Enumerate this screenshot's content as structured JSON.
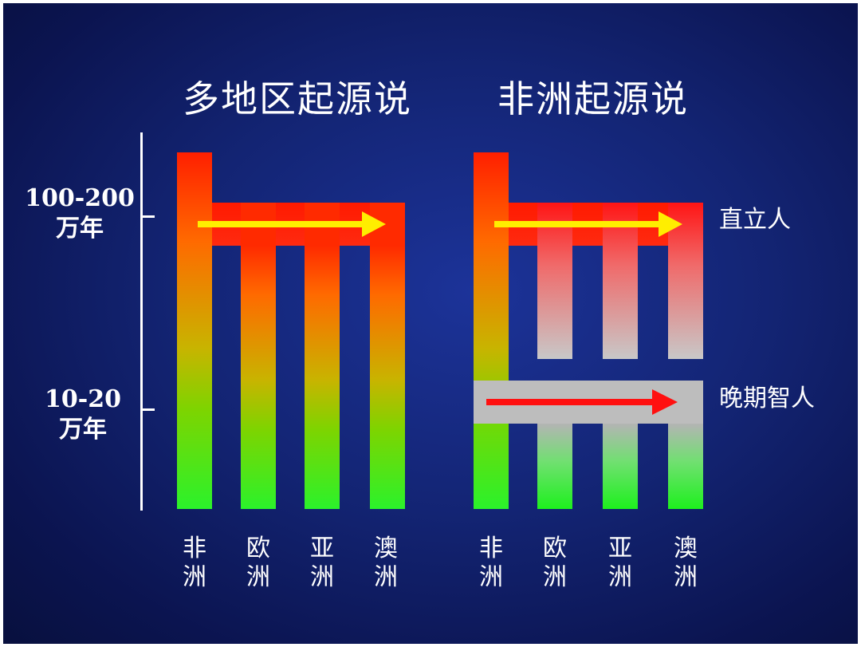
{
  "titles": {
    "left": "多地区起源说",
    "right": "非洲起源说"
  },
  "time_axis": {
    "tick_upper": {
      "line1": "100-200",
      "line2": "万年"
    },
    "tick_lower": {
      "line1": "10-20",
      "line2": "万年"
    }
  },
  "regions": [
    {
      "char1": "非",
      "char2": "洲"
    },
    {
      "char1": "欧",
      "char2": "洲"
    },
    {
      "char1": "亚",
      "char2": "洲"
    },
    {
      "char1": "澳",
      "char2": "洲"
    }
  ],
  "species": {
    "homo_erectus": "直立人",
    "late_homo_sapiens": "晚期智人"
  },
  "colors": {
    "background": "#132473",
    "bar_top_red": "#ff1f00",
    "bar_bottom_green": "#2bf22b",
    "arrow_yellow": "#ffee00",
    "arrow_red": "#ff1010",
    "gray_band": "#bdbdbd",
    "text": "#ffffff"
  }
}
